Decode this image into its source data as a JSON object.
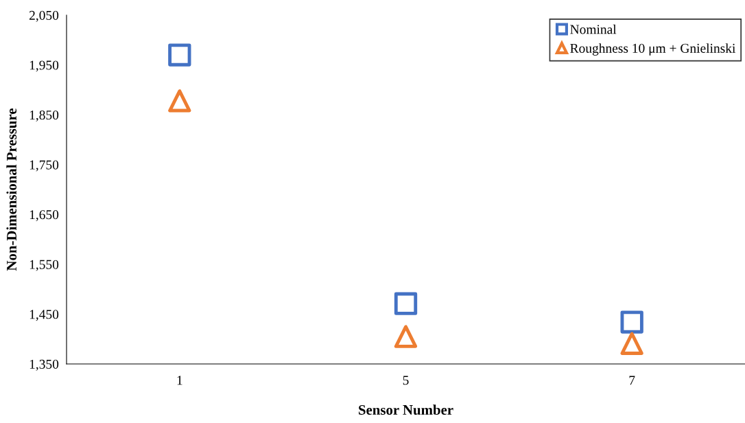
{
  "chart_data": {
    "type": "scatter",
    "xlabel": "Sensor Number",
    "ylabel": "Non-Dimensional Pressure",
    "categories": [
      "1",
      "5",
      "7"
    ],
    "series": [
      {
        "name": "Nominal",
        "color": "#4472c4",
        "marker": "square",
        "values": [
          1970,
          1471,
          1434
        ]
      },
      {
        "name": "Roughness 10 μm + Gnielinski",
        "color": "#ed7d31",
        "marker": "triangle",
        "values": [
          1878,
          1405,
          1391
        ]
      }
    ],
    "ylim": [
      1350,
      2050
    ],
    "yticks": [
      {
        "value": 1350,
        "label": "1,350"
      },
      {
        "value": 1450,
        "label": "1,450"
      },
      {
        "value": 1550,
        "label": "1,550"
      },
      {
        "value": 1650,
        "label": "1,650"
      },
      {
        "value": 1750,
        "label": "1,750"
      },
      {
        "value": 1850,
        "label": "1,850"
      },
      {
        "value": 1950,
        "label": "1,950"
      },
      {
        "value": 2050,
        "label": "2,050"
      }
    ],
    "grid": false,
    "legend": "top right"
  }
}
